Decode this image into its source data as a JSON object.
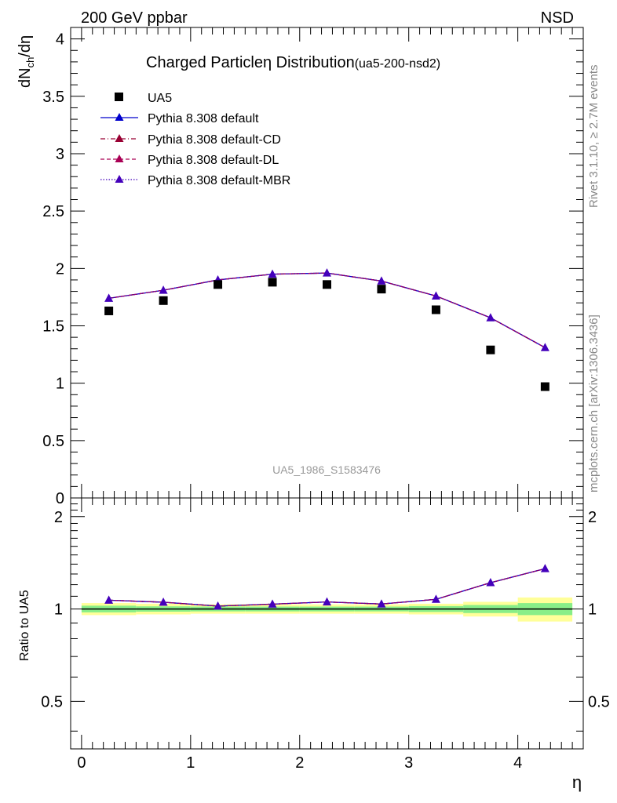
{
  "header": {
    "left": "200 GeV ppbar",
    "right": "NSD"
  },
  "side_labels": {
    "rivet": "Rivet 3.1.10, ≥ 2.7M events",
    "mcplots": "mcplots.cern.ch [arXiv:1306.3436]"
  },
  "watermark": "UA5_1986_S1583476",
  "colors": {
    "data": "#000000",
    "default": "#0000cc",
    "cd": "#990033",
    "dl": "#aa0055",
    "mbr": "#4400bb",
    "band_outer": "#ffff99",
    "band_inner": "#88ee88"
  },
  "chart_data": [
    {
      "type": "scatter",
      "title": "Charged Particle",
      "title_symbol": "η",
      "title_rest": " Distribution",
      "title_suffix": "(ua5-200-nsd2)",
      "ylabel": "dN_ch/dη",
      "xlim": [
        -0.1,
        4.6
      ],
      "ylim": [
        0,
        4.1
      ],
      "yticks": [
        0,
        0.5,
        1,
        1.5,
        2,
        2.5,
        3,
        3.5,
        4
      ],
      "ytick_labels": [
        "0",
        "0.5",
        "1",
        "1.5",
        "2",
        "2.5",
        "3",
        "3.5",
        "4"
      ],
      "legend_position": "top-left",
      "x": [
        0.25,
        0.75,
        1.25,
        1.75,
        2.25,
        2.75,
        3.25,
        3.75,
        4.25
      ],
      "series": [
        {
          "name": "UA5",
          "marker": "square",
          "values": [
            1.63,
            1.72,
            1.86,
            1.88,
            1.86,
            1.82,
            1.64,
            1.29,
            0.97
          ]
        },
        {
          "name": "Pythia 8.308 default",
          "marker": "triangle",
          "line": "solid",
          "values": [
            1.74,
            1.81,
            1.9,
            1.95,
            1.96,
            1.89,
            1.76,
            1.57,
            1.31
          ]
        },
        {
          "name": "Pythia 8.308 default-CD",
          "marker": "triangle",
          "line": "dashdot",
          "values": [
            1.74,
            1.81,
            1.9,
            1.95,
            1.96,
            1.89,
            1.76,
            1.57,
            1.31
          ]
        },
        {
          "name": "Pythia 8.308 default-DL",
          "marker": "triangle",
          "line": "dashed",
          "values": [
            1.74,
            1.81,
            1.9,
            1.95,
            1.96,
            1.89,
            1.76,
            1.57,
            1.31
          ]
        },
        {
          "name": "Pythia 8.308 default-MBR",
          "marker": "triangle",
          "line": "dotted",
          "values": [
            1.74,
            1.81,
            1.9,
            1.95,
            1.96,
            1.89,
            1.76,
            1.57,
            1.31
          ]
        }
      ]
    },
    {
      "type": "scatter",
      "ylabel": "Ratio to UA5",
      "xlabel": "η",
      "xlim": [
        -0.1,
        4.6
      ],
      "ylim": [
        0.35,
        2.3
      ],
      "xticks": [
        0,
        1,
        2,
        3,
        4
      ],
      "xtick_labels": [
        "0",
        "1",
        "2",
        "3",
        "4"
      ],
      "yticks": [
        0.5,
        1,
        2
      ],
      "ytick_labels": [
        "0.5",
        "1",
        "2"
      ],
      "x": [
        0.25,
        0.75,
        1.25,
        1.75,
        2.25,
        2.75,
        3.25,
        3.75,
        4.25
      ],
      "bins": [
        [
          0,
          0.5
        ],
        [
          0.5,
          1
        ],
        [
          1,
          1.5
        ],
        [
          1.5,
          2
        ],
        [
          2,
          2.5
        ],
        [
          2.5,
          3
        ],
        [
          3,
          3.5
        ],
        [
          3.5,
          4
        ],
        [
          4,
          4.5
        ]
      ],
      "band_outer": [
        0.045,
        0.04,
        0.035,
        0.035,
        0.035,
        0.035,
        0.04,
        0.055,
        0.09
      ],
      "band_inner": [
        0.025,
        0.02,
        0.018,
        0.018,
        0.018,
        0.018,
        0.022,
        0.03,
        0.045
      ],
      "series": [
        {
          "name": "Pythia 8.308 default",
          "values": [
            1.068,
            1.052,
            1.022,
            1.037,
            1.054,
            1.038,
            1.075,
            1.218,
            1.353
          ]
        }
      ]
    }
  ]
}
